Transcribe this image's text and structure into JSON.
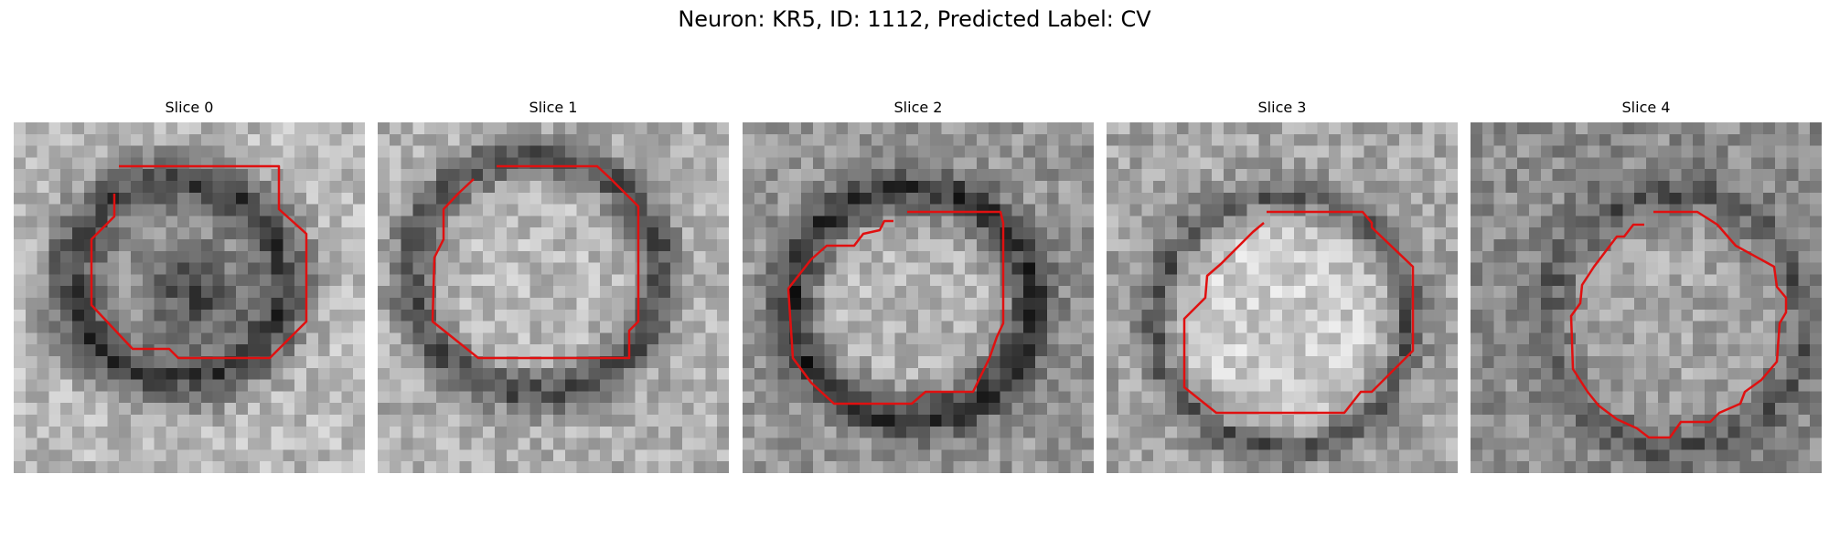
{
  "figure": {
    "title": "Neuron: KR5, ID: 1112, Predicted Label: CV",
    "contour_color": "#e01010",
    "colormap": "gray"
  },
  "panels": [
    {
      "title": "Slice 0"
    },
    {
      "title": "Slice 1"
    },
    {
      "title": "Slice 2"
    },
    {
      "title": "Slice 3"
    },
    {
      "title": "Slice 4"
    }
  ]
}
